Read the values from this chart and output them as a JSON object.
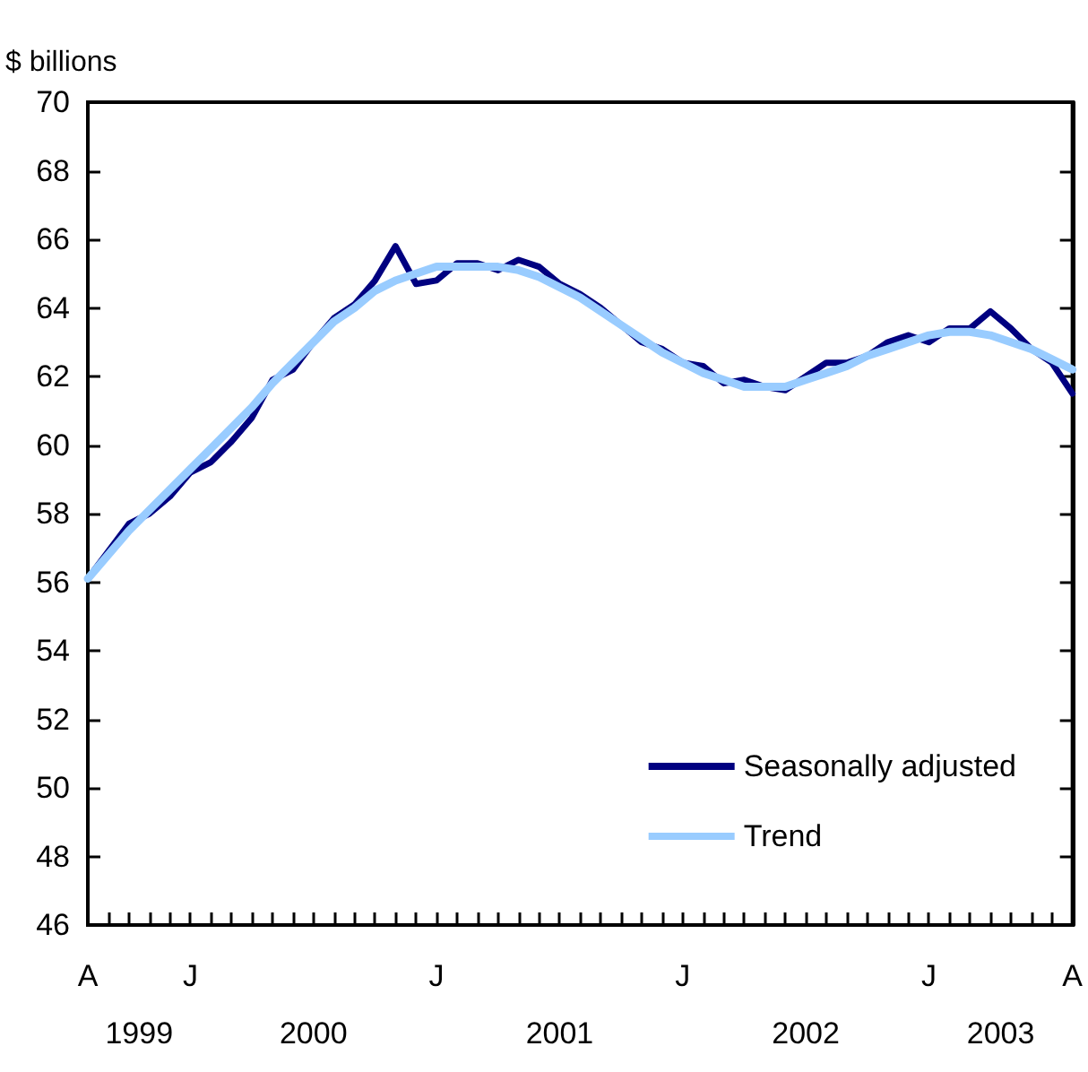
{
  "chart_data": {
    "type": "line",
    "ylabel": "$ billions",
    "categories": [
      "A",
      null,
      null,
      null,
      null,
      "J",
      null,
      null,
      null,
      null,
      null,
      null,
      null,
      null,
      null,
      null,
      null,
      "J",
      null,
      null,
      null,
      null,
      null,
      null,
      null,
      null,
      null,
      null,
      null,
      "J",
      null,
      null,
      null,
      null,
      null,
      null,
      null,
      null,
      null,
      null,
      null,
      "J",
      null,
      null,
      null,
      null,
      null,
      null,
      "A"
    ],
    "series": [
      {
        "name": "Seasonally adjusted",
        "color": "#000080",
        "values": [
          56.1,
          56.9,
          57.7,
          58.0,
          58.5,
          59.2,
          59.5,
          60.1,
          60.8,
          61.9,
          62.2,
          63.0,
          63.7,
          64.1,
          64.8,
          65.8,
          64.7,
          64.8,
          65.3,
          65.3,
          65.1,
          65.4,
          65.2,
          64.7,
          64.4,
          64.0,
          63.5,
          63.0,
          62.8,
          62.4,
          62.3,
          61.8,
          61.9,
          61.7,
          61.6,
          62.0,
          62.4,
          62.4,
          62.6,
          63.0,
          63.2,
          63.0,
          63.4,
          63.4,
          63.9,
          63.4,
          62.8,
          62.4,
          61.5
        ]
      },
      {
        "name": "Trend",
        "color": "#99ccff",
        "values": [
          56.1,
          56.8,
          57.5,
          58.1,
          58.7,
          59.3,
          59.9,
          60.5,
          61.1,
          61.8,
          62.4,
          63.0,
          63.6,
          64.0,
          64.5,
          64.8,
          65.0,
          65.2,
          65.2,
          65.2,
          65.2,
          65.1,
          64.9,
          64.6,
          64.3,
          63.9,
          63.5,
          63.1,
          62.7,
          62.4,
          62.1,
          61.9,
          61.7,
          61.7,
          61.7,
          61.9,
          62.1,
          62.3,
          62.6,
          62.8,
          63.0,
          63.2,
          63.3,
          63.3,
          63.2,
          63.0,
          62.8,
          62.5,
          62.2
        ]
      }
    ],
    "ylim": [
      46,
      70
    ],
    "yticks": [
      46,
      48,
      50,
      52,
      54,
      56,
      58,
      60,
      62,
      64,
      66,
      68,
      70
    ],
    "annotations": [
      "1999",
      "2000",
      "2001",
      "2002",
      "2003"
    ],
    "legend": "bottom right"
  }
}
